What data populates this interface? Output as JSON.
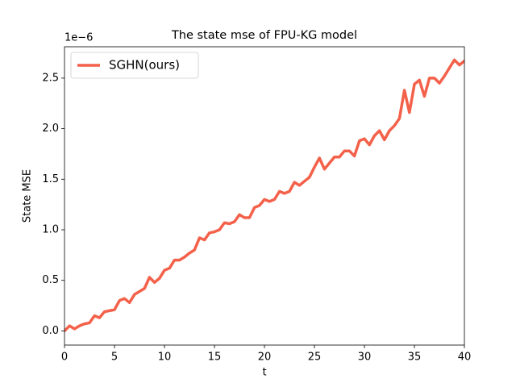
{
  "chart_data": {
    "type": "line",
    "title": "The state mse of FPU-KG model",
    "xlabel": "t",
    "ylabel": "State MSE",
    "y_offset_text": "1e−6",
    "x": [
      0,
      0.5,
      1,
      1.5,
      2,
      2.5,
      3,
      3.5,
      4,
      4.5,
      5,
      5.5,
      6,
      6.5,
      7,
      7.5,
      8,
      8.5,
      9,
      9.5,
      10,
      10.5,
      11,
      11.5,
      12,
      12.5,
      13,
      13.5,
      14,
      14.5,
      15,
      15.5,
      16,
      16.5,
      17,
      17.5,
      18,
      18.5,
      19,
      19.5,
      20,
      20.5,
      21,
      21.5,
      22,
      22.5,
      23,
      23.5,
      24,
      24.5,
      25,
      25.5,
      26,
      26.5,
      27,
      27.5,
      28,
      28.5,
      29,
      29.5,
      30,
      30.5,
      31,
      31.5,
      32,
      32.5,
      33,
      33.5,
      34,
      34.5,
      35,
      35.5,
      36,
      36.5,
      37,
      37.5,
      38,
      38.5,
      39,
      39.5,
      40
    ],
    "series": [
      {
        "name": "SGHN(ours)",
        "color": "#f4614a",
        "values": [
          0.0,
          0.05,
          0.02,
          0.05,
          0.07,
          0.08,
          0.15,
          0.13,
          0.19,
          0.2,
          0.21,
          0.3,
          0.32,
          0.28,
          0.36,
          0.39,
          0.42,
          0.53,
          0.48,
          0.52,
          0.6,
          0.62,
          0.7,
          0.7,
          0.73,
          0.77,
          0.8,
          0.92,
          0.9,
          0.97,
          0.98,
          1.0,
          1.07,
          1.06,
          1.08,
          1.15,
          1.12,
          1.12,
          1.22,
          1.24,
          1.3,
          1.28,
          1.3,
          1.38,
          1.36,
          1.38,
          1.47,
          1.44,
          1.48,
          1.52,
          1.62,
          1.71,
          1.6,
          1.66,
          1.72,
          1.72,
          1.78,
          1.78,
          1.73,
          1.88,
          1.9,
          1.84,
          1.93,
          1.98,
          1.89,
          1.98,
          2.03,
          2.1,
          2.38,
          2.16,
          2.44,
          2.48,
          2.32,
          2.5,
          2.5,
          2.45,
          2.52,
          2.6,
          2.68,
          2.63,
          2.67
        ]
      }
    ],
    "xlim": [
      0,
      40
    ],
    "xticks": [
      0,
      5,
      10,
      15,
      20,
      25,
      30,
      35,
      40
    ],
    "ylim": [
      -0.14,
      2.81
    ],
    "yticks": [
      {
        "value": 0,
        "label": "0.0"
      },
      0.5,
      {
        "value": 1,
        "label": "1.0"
      },
      1.5,
      {
        "value": 2,
        "label": "2.0"
      },
      2.5
    ],
    "legend": "upper left",
    "grid": false
  }
}
